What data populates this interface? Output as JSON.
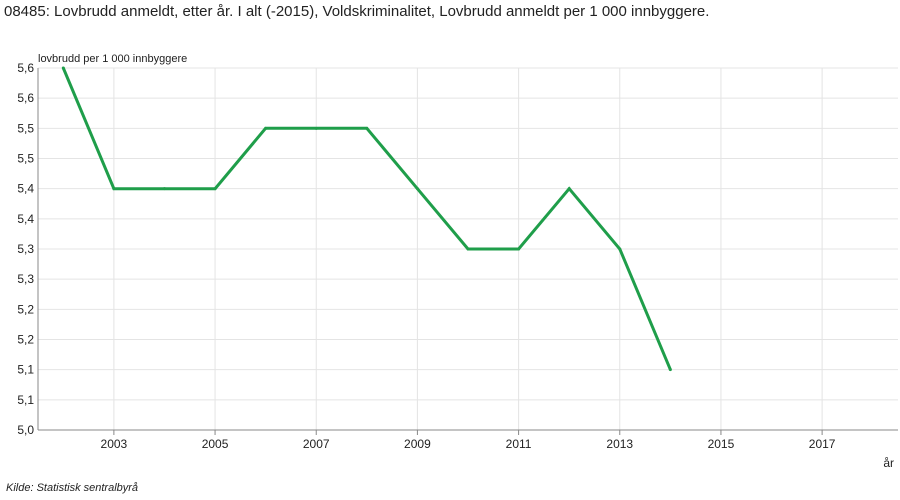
{
  "chart_data": {
    "type": "line",
    "title": "08485: Lovbrudd anmeldt, etter år. I alt (-2015), Voldskriminalitet, Lovbrudd anmeldt per 1 000 innbyggere.",
    "ylabel": "lovbrudd per 1 000 innbyggere",
    "xlabel": "år",
    "source": "Kilde:  Statistisk sentralbyrå",
    "x": [
      2002,
      2003,
      2004,
      2005,
      2006,
      2007,
      2008,
      2009,
      2010,
      2011,
      2012,
      2013,
      2014
    ],
    "series": [
      {
        "values": [
          5.6,
          5.4,
          5.4,
          5.4,
          5.5,
          5.5,
          5.5,
          5.4,
          5.3,
          5.3,
          5.4,
          5.3,
          5.1
        ]
      }
    ],
    "xlim": [
      2001.5,
      2018.5
    ],
    "ylim": [
      5.0,
      5.6
    ],
    "x_ticks": [
      2003,
      2005,
      2007,
      2009,
      2011,
      2013,
      2015,
      2017
    ],
    "y_ticks": [
      5.0,
      5.05,
      5.1,
      5.15,
      5.2,
      5.25,
      5.3,
      5.35,
      5.4,
      5.45,
      5.5,
      5.55,
      5.6
    ],
    "y_tick_labels": [
      "5,0",
      "5,1",
      "5,1",
      "5,2",
      "5,2",
      "5,3",
      "5,3",
      "5,4",
      "5,4",
      "5,5",
      "5,5",
      "5,6",
      "5,6"
    ],
    "grid": true,
    "line_color": "#1f9e4a"
  }
}
